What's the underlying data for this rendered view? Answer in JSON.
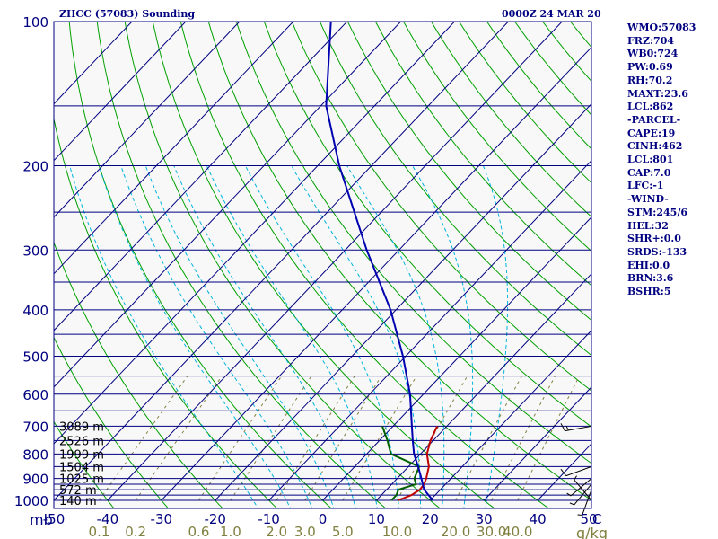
{
  "title_left": "ZHCC (57083) Sounding",
  "title_right": "0000Z 24 MAR 20",
  "stats": [
    "WMO:57083",
    "FRZ:704",
    "WB0:724",
    "PW:0.69",
    "RH:70.2",
    "MAXT:23.6",
    "LCL:862",
    "-PARCEL-",
    "CAPE:19",
    "CINH:462",
    "LCL:801",
    "CAP:7.0",
    "LFC:-1",
    "-WIND-",
    "STM:245/6",
    "HEL:32",
    "SHR+:0.0",
    "SRDS:-133",
    "EHI:0.0",
    "BRN:3.6",
    "BSHR:5"
  ],
  "colors": {
    "text": "#000080",
    "isobar": "#000080",
    "isotherm": "#000080",
    "dry_adiabat": "#00a000",
    "moist_adiabat": "#00b4dc",
    "mixing_ratio": "#808040",
    "temperature": "#c00000",
    "dewpoint": "#006000",
    "parcel": "#0000b0",
    "wind": "#000000",
    "frame_fill": "#f8f8f8"
  },
  "chart_data": {
    "type": "line",
    "chart_kind": "skew-T log-P",
    "y_scale": "log pressure",
    "ylim_hpa": [
      1000,
      100
    ],
    "xlim_c": [
      -50,
      50
    ],
    "pressure_labels": [
      "100",
      "200",
      "300",
      "400",
      "500",
      "600",
      "700",
      "800",
      "900",
      "1000"
    ],
    "pressure_label_values": [
      100,
      200,
      300,
      400,
      500,
      600,
      700,
      800,
      900,
      1000
    ],
    "isobars_hpa": [
      100,
      150,
      200,
      250,
      300,
      350,
      400,
      450,
      500,
      550,
      600,
      650,
      700,
      750,
      800,
      850,
      900,
      925,
      950,
      975,
      1000
    ],
    "temp_labels": [
      "-50",
      "-40",
      "-30",
      "-20",
      "-10",
      "0",
      "10",
      "20",
      "30",
      "40",
      "50"
    ],
    "temp_label_values": [
      -50,
      -40,
      -30,
      -20,
      -10,
      0,
      10,
      20,
      30,
      40,
      50
    ],
    "axis_unit_left": "mb",
    "axis_unit_right": "C",
    "mixing_ratio_labels": [
      "0.1",
      "0.2",
      "0.6",
      "1.0",
      "2.0",
      "3.0",
      "5.0",
      "10.0",
      "20.0",
      "30.0",
      "40.0"
    ],
    "mixing_ratio_values": [
      0.1,
      0.2,
      0.6,
      1.0,
      2.0,
      3.0,
      5.0,
      10.0,
      20.0,
      30.0,
      40.0
    ],
    "mixing_ratio_unit": "g/kg",
    "height_labels": [
      "3089 m",
      "2526 m",
      "1999 m",
      "1504 m",
      "1025 m",
      "572 m",
      "140 m"
    ],
    "height_pressures": [
      700,
      750,
      800,
      850,
      900,
      950,
      1000
    ],
    "series": [
      {
        "key": "temperature",
        "points": [
          [
            1000,
            14.0
          ],
          [
            975,
            15.6
          ],
          [
            950,
            16.2
          ],
          [
            925,
            16.0
          ],
          [
            900,
            15.4
          ],
          [
            850,
            13.8
          ],
          [
            800,
            11.2
          ],
          [
            750,
            9.5
          ],
          [
            700,
            8.2
          ]
        ]
      },
      {
        "key": "dewpoint",
        "points": [
          [
            1000,
            12.8
          ],
          [
            975,
            12.8
          ],
          [
            950,
            12.2
          ],
          [
            925,
            14.5
          ],
          [
            900,
            13.2
          ],
          [
            850,
            12.0
          ],
          [
            800,
            4.5
          ],
          [
            750,
            1.5
          ],
          [
            700,
            -2.0
          ]
        ]
      },
      {
        "key": "parcel",
        "points": [
          [
            1000,
            20.5
          ],
          [
            950,
            17.0
          ],
          [
            900,
            14.5
          ],
          [
            850,
            11.8
          ],
          [
            800,
            8.8
          ],
          [
            750,
            6.2
          ],
          [
            700,
            3.5
          ],
          [
            600,
            -2.5
          ],
          [
            500,
            -10.5
          ],
          [
            400,
            -21.0
          ],
          [
            300,
            -36.0
          ],
          [
            250,
            -45.0
          ],
          [
            200,
            -56.0
          ],
          [
            150,
            -69.0
          ],
          [
            100,
            -83.0
          ]
        ]
      }
    ],
    "wind_barbs": [
      {
        "p": 700,
        "dir": 260,
        "spd": 15
      },
      {
        "p": 850,
        "dir": 250,
        "spd": 10
      },
      {
        "p": 900,
        "dir": 230,
        "spd": 5
      },
      {
        "p": 925,
        "dir": 220,
        "spd": 5
      },
      {
        "p": 950,
        "dir": 200,
        "spd": 5
      },
      {
        "p": 1000,
        "dir": 320,
        "spd": 5
      }
    ]
  }
}
